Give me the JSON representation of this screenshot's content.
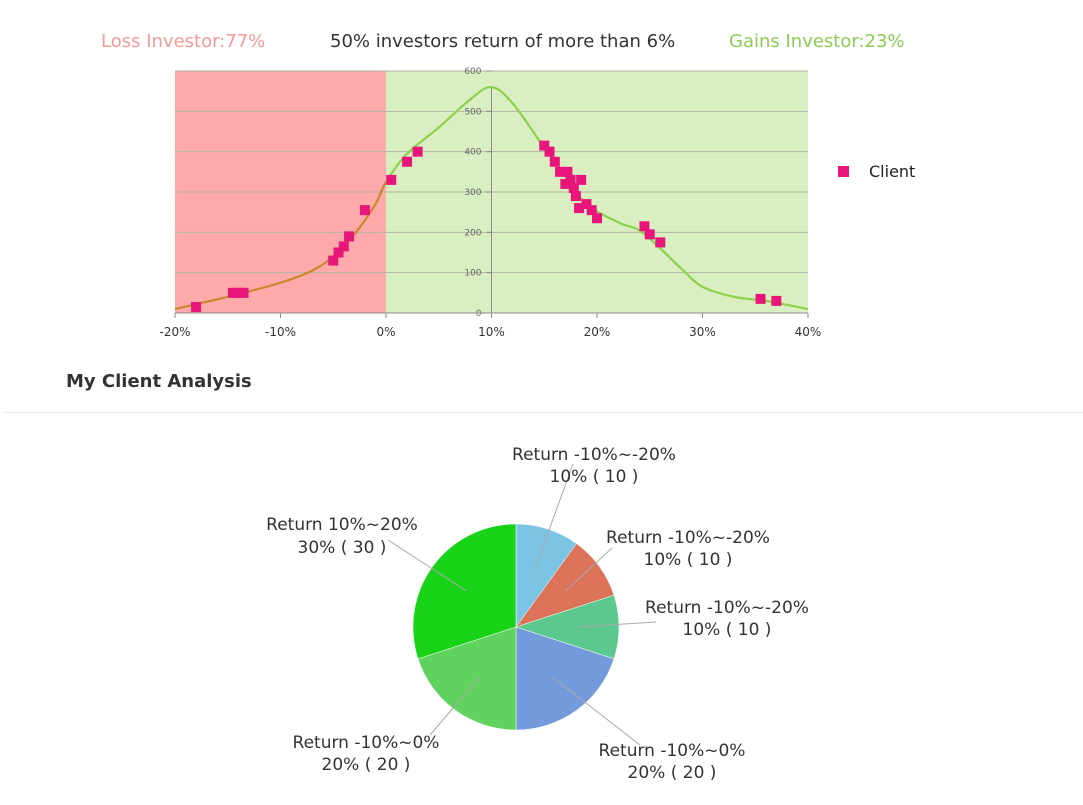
{
  "header": {
    "loss_label": "Loss Investor:77%",
    "center_label": "50% investors return of more than 6%",
    "gain_label": "Gains Investor:23%"
  },
  "colors": {
    "loss_zone": "#ffaaaa",
    "gain_zone": "#d9efc2",
    "curve_loss": "#c9882b",
    "curve_gain": "#8dd14a",
    "client_marker": "#e8157a",
    "loss_text": "#f29a97",
    "gain_text": "#8ccc55"
  },
  "section": {
    "title": "My Client Analysis"
  },
  "chart_data": [
    {
      "type": "scatter",
      "xlim": [
        -20,
        40
      ],
      "ylim": [
        0,
        600
      ],
      "x_ticks": [
        "-20%",
        "-10%",
        "0%",
        "10%",
        "20%",
        "30%",
        "40%"
      ],
      "x_tick_values": [
        -20,
        -10,
        0,
        10,
        20,
        30,
        40
      ],
      "y_ticks": [
        "0",
        "100",
        "200",
        "300",
        "400",
        "500",
        "600"
      ],
      "y_tick_values": [
        0,
        100,
        200,
        300,
        400,
        500,
        600
      ],
      "grid": true,
      "legend": {
        "placement": "right",
        "entries": [
          "Client"
        ]
      },
      "zones": [
        {
          "from": -20,
          "to": 0,
          "label": "Loss Investor:77%"
        },
        {
          "from": 0,
          "to": 40,
          "label": "Gains Investor:23%"
        }
      ],
      "curve": {
        "x": [
          -20,
          -15,
          -10,
          -7,
          -5,
          -3,
          -1,
          0,
          2,
          5,
          8,
          10,
          12,
          15,
          17,
          19,
          22,
          24,
          26,
          28,
          30,
          33,
          36,
          40
        ],
        "y": [
          10,
          40,
          75,
          105,
          140,
          195,
          270,
          325,
          395,
          460,
          530,
          560,
          520,
          410,
          340,
          270,
          225,
          205,
          160,
          110,
          65,
          40,
          30,
          10
        ]
      },
      "series": [
        {
          "name": "Client",
          "x": [
            -18,
            -14.5,
            -14,
            -13.5,
            -5,
            -4.5,
            -4,
            -3.5,
            -2,
            0.5,
            2,
            3,
            15,
            15.5,
            16,
            16.5,
            17,
            17.2,
            17.5,
            17.8,
            18,
            18.3,
            18.5,
            19,
            19.5,
            20,
            24.5,
            25,
            26,
            35.5,
            37
          ],
          "y": [
            15,
            50,
            50,
            50,
            130,
            150,
            165,
            190,
            255,
            330,
            375,
            400,
            415,
            400,
            375,
            350,
            320,
            350,
            330,
            310,
            290,
            260,
            330,
            270,
            255,
            235,
            215,
            195,
            175,
            35,
            30
          ]
        }
      ]
    },
    {
      "type": "pie",
      "slices": [
        {
          "name": "Return -10%~-20%",
          "percent": "10%",
          "count": 10,
          "value": 10,
          "color": "#7cc4e4",
          "display": "10% ( 10 )"
        },
        {
          "name": "Return -10%~-20%",
          "percent": "10%",
          "count": 10,
          "value": 10,
          "color": "#dc7358",
          "display": "10% ( 10 )"
        },
        {
          "name": "Return -10%~-20%",
          "percent": "10%",
          "count": 10,
          "value": 10,
          "color": "#5bc88e",
          "display": "10% ( 10 )"
        },
        {
          "name": "Return -10%~0%",
          "percent": "20%",
          "count": 20,
          "value": 20,
          "color": "#739bdb",
          "display": "20% ( 20 )"
        },
        {
          "name": "Return -10%~0%",
          "percent": "20%",
          "count": 20,
          "value": 20,
          "color": "#60d35e",
          "display": "20% ( 20 )"
        },
        {
          "name": "Return 10%~20%",
          "percent": "30%",
          "count": 30,
          "value": 30,
          "color": "#18d318",
          "display": "30% ( 30 )"
        }
      ]
    }
  ]
}
